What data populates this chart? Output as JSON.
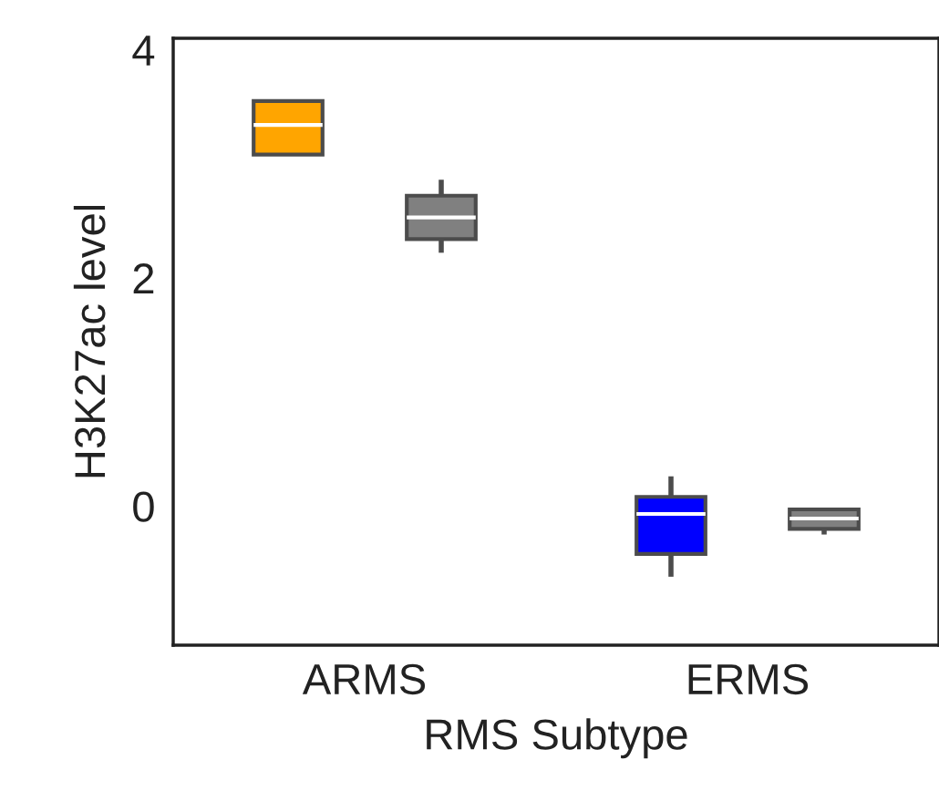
{
  "chart_data": {
    "type": "box",
    "xlabel": "RMS Subtype",
    "ylabel": "H3K27ac level",
    "categories": [
      "ARMS",
      "ERMS"
    ],
    "series": [
      {
        "colors": [
          "#ffa500",
          "#0000ff"
        ],
        "boxes": [
          {
            "low": 3.08,
            "q1": 3.08,
            "median": 3.34,
            "q3": 3.55,
            "high": 3.55
          },
          {
            "low": -0.62,
            "q1": -0.42,
            "median": -0.07,
            "q3": 0.08,
            "high": 0.26
          }
        ]
      },
      {
        "color": "#808080",
        "boxes": [
          {
            "low": 2.22,
            "q1": 2.34,
            "median": 2.53,
            "q3": 2.72,
            "high": 2.86
          },
          {
            "low": -0.25,
            "q1": -0.2,
            "median": -0.11,
            "q3": -0.03,
            "high": -0.03
          }
        ]
      }
    ],
    "ylim": [
      -1.22,
      4.1
    ],
    "yticks": [
      0,
      2,
      4
    ],
    "grid": false
  }
}
